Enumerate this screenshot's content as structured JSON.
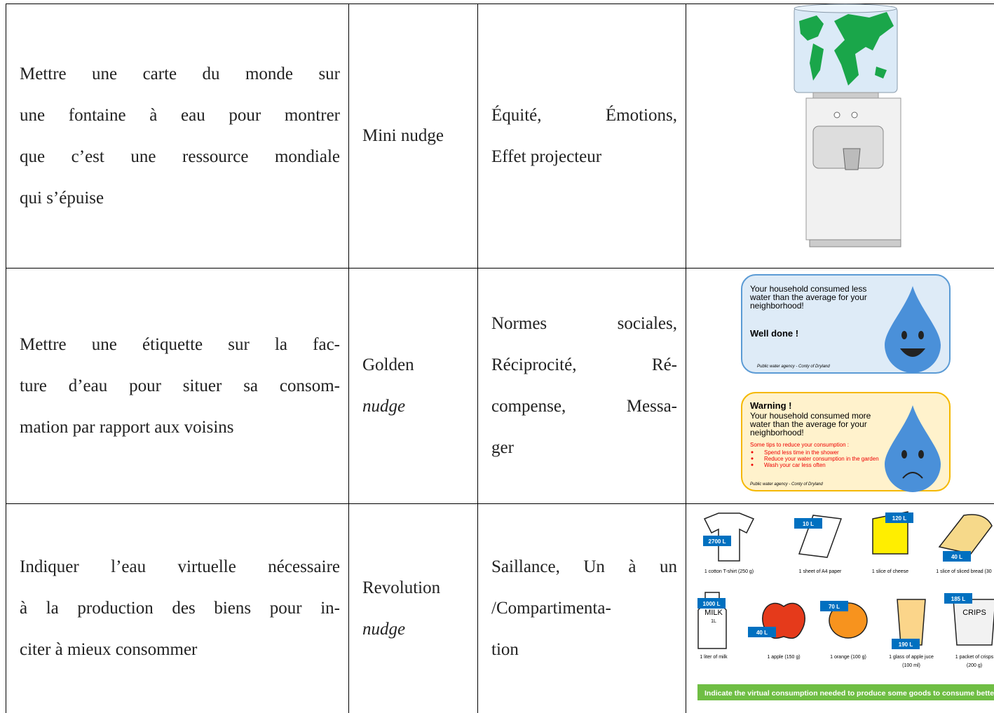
{
  "table": {
    "rows": [
      {
        "description": [
          "Mettre une carte du monde sur",
          "une fontaine à eau pour montrer",
          "que c’est une ressource mondiale",
          "qui s’épuise"
        ],
        "type": [
          {
            "text": "Mini nudge",
            "italic": false
          }
        ],
        "principles": [
          "Équité, Émotions,",
          "Effet projecteur"
        ]
      },
      {
        "description": [
          "Mettre une étiquette sur la fac-",
          "ture d’eau pour situer sa consom-",
          "mation par rapport aux voisins"
        ],
        "type": [
          {
            "text": "Golden",
            "italic": false
          },
          {
            "text": "nudge",
            "italic": true
          }
        ],
        "principles": [
          "Normes sociales,",
          "Réciprocité, Ré-",
          "compense, Messa-",
          "ger"
        ],
        "illustration": {
          "good_card": {
            "lines": [
              "Your household consumed less",
              "water than the average for your",
              "neighborhood!"
            ],
            "emphasis": "Well done !",
            "footer": "Public water agency - Conty of Dryland"
          },
          "bad_card": {
            "title": "Warning !",
            "lines": [
              "Your household consumed more",
              "water than the average for your",
              "neighborhood!"
            ],
            "tips_intro": "Some tips to reduce your consumption :",
            "tips": [
              "Spend less time in the shower",
              "Reduce your water consumption in the garden",
              "Wash your car less often"
            ],
            "footer": "Public water agency - Conty of Dryland"
          }
        }
      },
      {
        "description": [
          "Indiquer l’eau virtuelle nécessaire",
          "à la production des biens pour in-",
          "citer à mieux consommer"
        ],
        "type": [
          {
            "text": "Revolution",
            "italic": false
          },
          {
            "text": "nudge",
            "italic": true
          }
        ],
        "principles": [
          "Saillance, Un à un",
          "/Compartimenta-",
          "tion"
        ],
        "illustration": {
          "items": [
            {
              "amount": "2700 L",
              "caption": [
                "1 cotton T-shirt (250 g)"
              ]
            },
            {
              "amount": "10 L",
              "caption": [
                "1 sheet of A4 paper"
              ]
            },
            {
              "amount": "120 L",
              "caption": [
                "1 slice of cheese"
              ]
            },
            {
              "amount": "40 L",
              "caption": [
                "1 slice of sliced bread (30"
              ]
            },
            {
              "amount": "1000 L",
              "caption": [
                "1 liter of milk"
              ],
              "icon_text": [
                "MILK",
                "1L"
              ]
            },
            {
              "amount": "40 L",
              "caption": [
                "1 apple (150 g)"
              ]
            },
            {
              "amount": "70 L",
              "caption": [
                "1 orange (100 g)"
              ]
            },
            {
              "amount": "190 L",
              "caption": [
                "1 glass of apple juce",
                "(100 ml)"
              ]
            },
            {
              "amount": "185 L",
              "caption": [
                "1 packet of crisps",
                "(200 g)"
              ],
              "icon_text": [
                "CRIPS"
              ]
            }
          ],
          "banner": "Indicate the virtual consumption needed to produce some goods to consume better"
        }
      }
    ]
  }
}
